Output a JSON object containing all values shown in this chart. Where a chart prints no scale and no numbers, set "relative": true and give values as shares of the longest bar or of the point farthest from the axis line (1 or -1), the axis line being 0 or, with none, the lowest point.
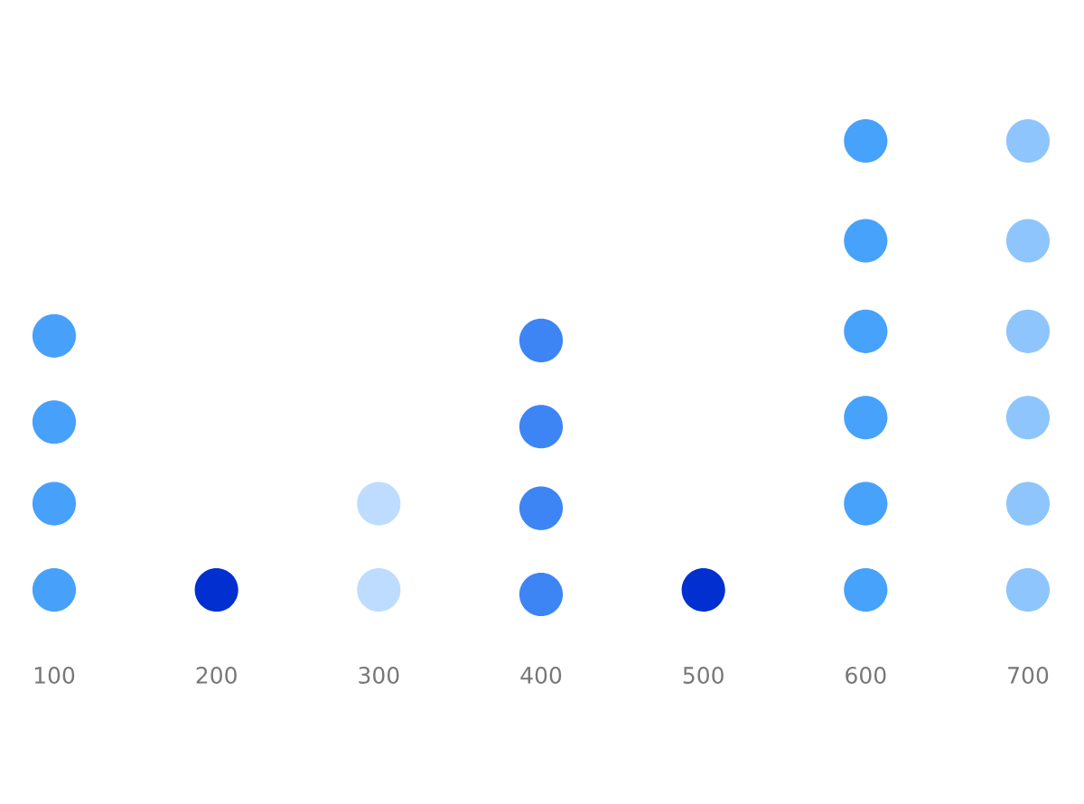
{
  "chart_data": {
    "type": "scatter",
    "relative": true,
    "marker": "circle",
    "grid": false,
    "legend": false,
    "categories": [
      "100",
      "200",
      "300",
      "400",
      "500",
      "600",
      "700"
    ],
    "series": [
      {
        "color": "#47a1fa",
        "x": [
          "100",
          "100",
          "100",
          "100"
        ],
        "values": [
          0.01,
          0.2,
          0.38,
          0.57
        ]
      },
      {
        "color": "#0230d0",
        "x": [
          "200"
        ],
        "values": [
          0.01
        ]
      },
      {
        "color": "#bddcff",
        "x": [
          "300",
          "300"
        ],
        "values": [
          0.01,
          0.2
        ]
      },
      {
        "color": "#3d85f5",
        "x": [
          "400",
          "400",
          "400",
          "400"
        ],
        "values": [
          0.0,
          0.19,
          0.37,
          0.56
        ]
      },
      {
        "color": "#0230d0",
        "x": [
          "500"
        ],
        "values": [
          0.01
        ]
      },
      {
        "color": "#46a2fb",
        "x": [
          "600",
          "600",
          "600",
          "600",
          "600",
          "600"
        ],
        "values": [
          0.01,
          0.2,
          0.39,
          0.58,
          0.78,
          1.0
        ]
      },
      {
        "color": "#8ec5fd",
        "x": [
          "700",
          "700",
          "700",
          "700",
          "700",
          "700"
        ],
        "values": [
          0.01,
          0.2,
          0.39,
          0.58,
          0.78,
          1.0
        ]
      }
    ]
  }
}
